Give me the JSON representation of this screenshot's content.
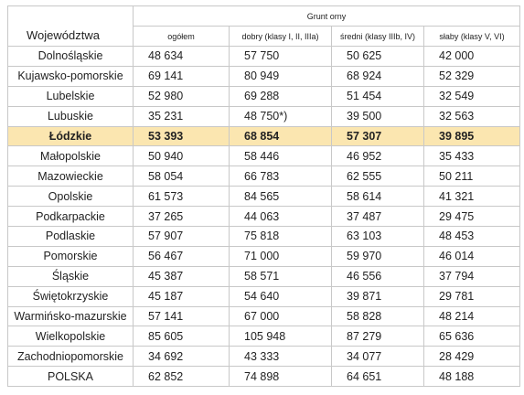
{
  "table": {
    "header": {
      "title": "Województwa",
      "group": "Grunt orny",
      "columns": [
        "ogółem",
        "dobry (klasy I, II, IIIa)",
        "średni (klasy IIIb, IV)",
        "słaby (klasy V, VI)"
      ]
    },
    "rows": [
      [
        "Dolnośląskie",
        "48 634",
        "57 750",
        "50 625",
        "42 000"
      ],
      [
        "Kujawsko-pomorskie",
        "69 141",
        "80 949",
        "68 924",
        "52 329"
      ],
      [
        "Lubelskie",
        "52 980",
        "69 288",
        "51 454",
        "32 549"
      ],
      [
        "Lubuskie",
        "35 231",
        "48 750*)",
        "39 500",
        "32 563"
      ],
      [
        "Łódzkie",
        "53 393",
        "68 854",
        "57 307",
        "39 895"
      ],
      [
        "Małopolskie",
        "50 940",
        "58 446",
        "46 952",
        "35 433"
      ],
      [
        "Mazowieckie",
        "58 054",
        "66 783",
        "62 555",
        "50 211"
      ],
      [
        "Opolskie",
        "61 573",
        "84 565",
        "58 614",
        "41 321"
      ],
      [
        "Podkarpackie",
        "37 265",
        "44 063",
        "37 487",
        "29 475"
      ],
      [
        "Podlaskie",
        "57 907",
        "75 818",
        "63 103",
        "48 453"
      ],
      [
        "Pomorskie",
        "56 467",
        "71 000",
        "59 970",
        "46 014"
      ],
      [
        "Śląskie",
        "45 387",
        "58 571",
        "46 556",
        "37 794"
      ],
      [
        "Świętokrzyskie",
        "45 187",
        "54 640",
        "39 871",
        "29 781"
      ],
      [
        "Warmińsko-mazurskie",
        "57 141",
        "67 000",
        "58 828",
        "48 214"
      ],
      [
        "Wielkopolskie",
        "85 605",
        "105 948",
        "87 279",
        "65 636"
      ],
      [
        "Zachodniopomorskie",
        "34 692",
        "43 333",
        "34 077",
        "28 429"
      ],
      [
        "POLSKA",
        "62 852",
        "74 898",
        "64 651",
        "48 188"
      ]
    ]
  }
}
